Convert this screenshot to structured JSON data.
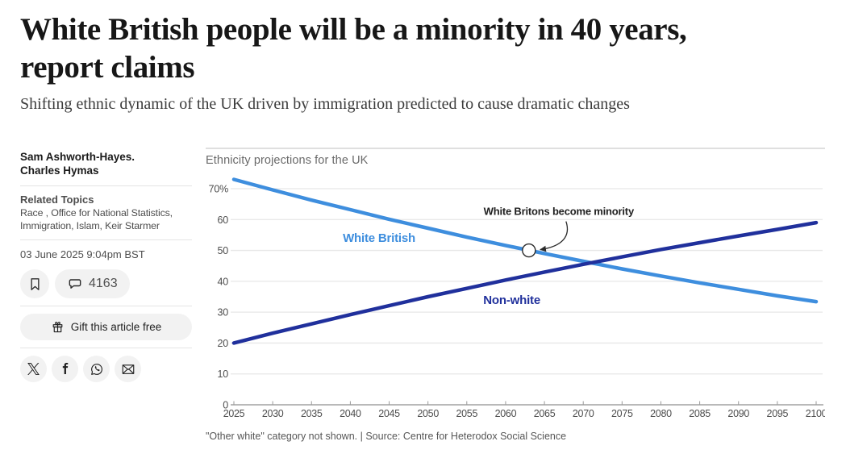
{
  "header": {
    "title": "White British people will be a minority in 40 years, report claims",
    "subtitle": "Shifting ethnic dynamic of the UK driven by immigration predicted to cause dramatic changes"
  },
  "sidebar": {
    "authors": [
      "Sam Ashworth-Hayes.",
      "Charles Hymas"
    ],
    "related_topics_label": "Related Topics",
    "related_topics": "Race , Office for National Statistics, Immigration, Islam, Keir Starmer",
    "date": "03 June 2025 9:04pm BST",
    "comments_count": "4163",
    "gift_label": "Gift this article free",
    "social": [
      {
        "name": "x"
      },
      {
        "name": "facebook"
      },
      {
        "name": "whatsapp"
      },
      {
        "name": "email"
      }
    ]
  },
  "chart_data": {
    "type": "line",
    "title": "Ethnicity projections for the UK",
    "xlabel": "",
    "ylabel": "",
    "x": [
      2025,
      2030,
      2035,
      2040,
      2045,
      2050,
      2055,
      2060,
      2065,
      2070,
      2075,
      2080,
      2085,
      2090,
      2095,
      2100
    ],
    "series": [
      {
        "name": "White British",
        "color": "#3E8EDE",
        "values": [
          73,
          69.6,
          66.3,
          63.2,
          60.1,
          57.2,
          54.3,
          51.6,
          49,
          46.5,
          44,
          41.7,
          39.5,
          37.4,
          35.3,
          33.4
        ]
      },
      {
        "name": "Non-white",
        "color": "#20309C",
        "values": [
          20,
          23.2,
          26.2,
          29.2,
          32.1,
          35,
          37.7,
          40.4,
          43,
          45.5,
          47.9,
          50.3,
          52.5,
          54.7,
          56.8,
          59
        ]
      }
    ],
    "ylim": [
      0,
      75
    ],
    "yticks": [
      0,
      10,
      20,
      30,
      40,
      50,
      60,
      70
    ],
    "ytick_labels": [
      "0",
      "10",
      "20",
      "30",
      "40",
      "50",
      "60",
      "70%"
    ],
    "grid": "horizontal",
    "legend_position": "inline-labels",
    "series_labels": [
      {
        "text": "White British",
        "year": 2043.7,
        "value": 52.7,
        "color": "#3E8EDE"
      },
      {
        "text": "Non-white",
        "year": 2060.8,
        "value": 32.6,
        "color": "#20309C"
      }
    ],
    "annotation": {
      "text": "White Britons become minority",
      "year": 2063,
      "value": 50
    },
    "footnote": "\"Other white\" category not shown. | Source: Centre for Heterodox Social Science"
  }
}
